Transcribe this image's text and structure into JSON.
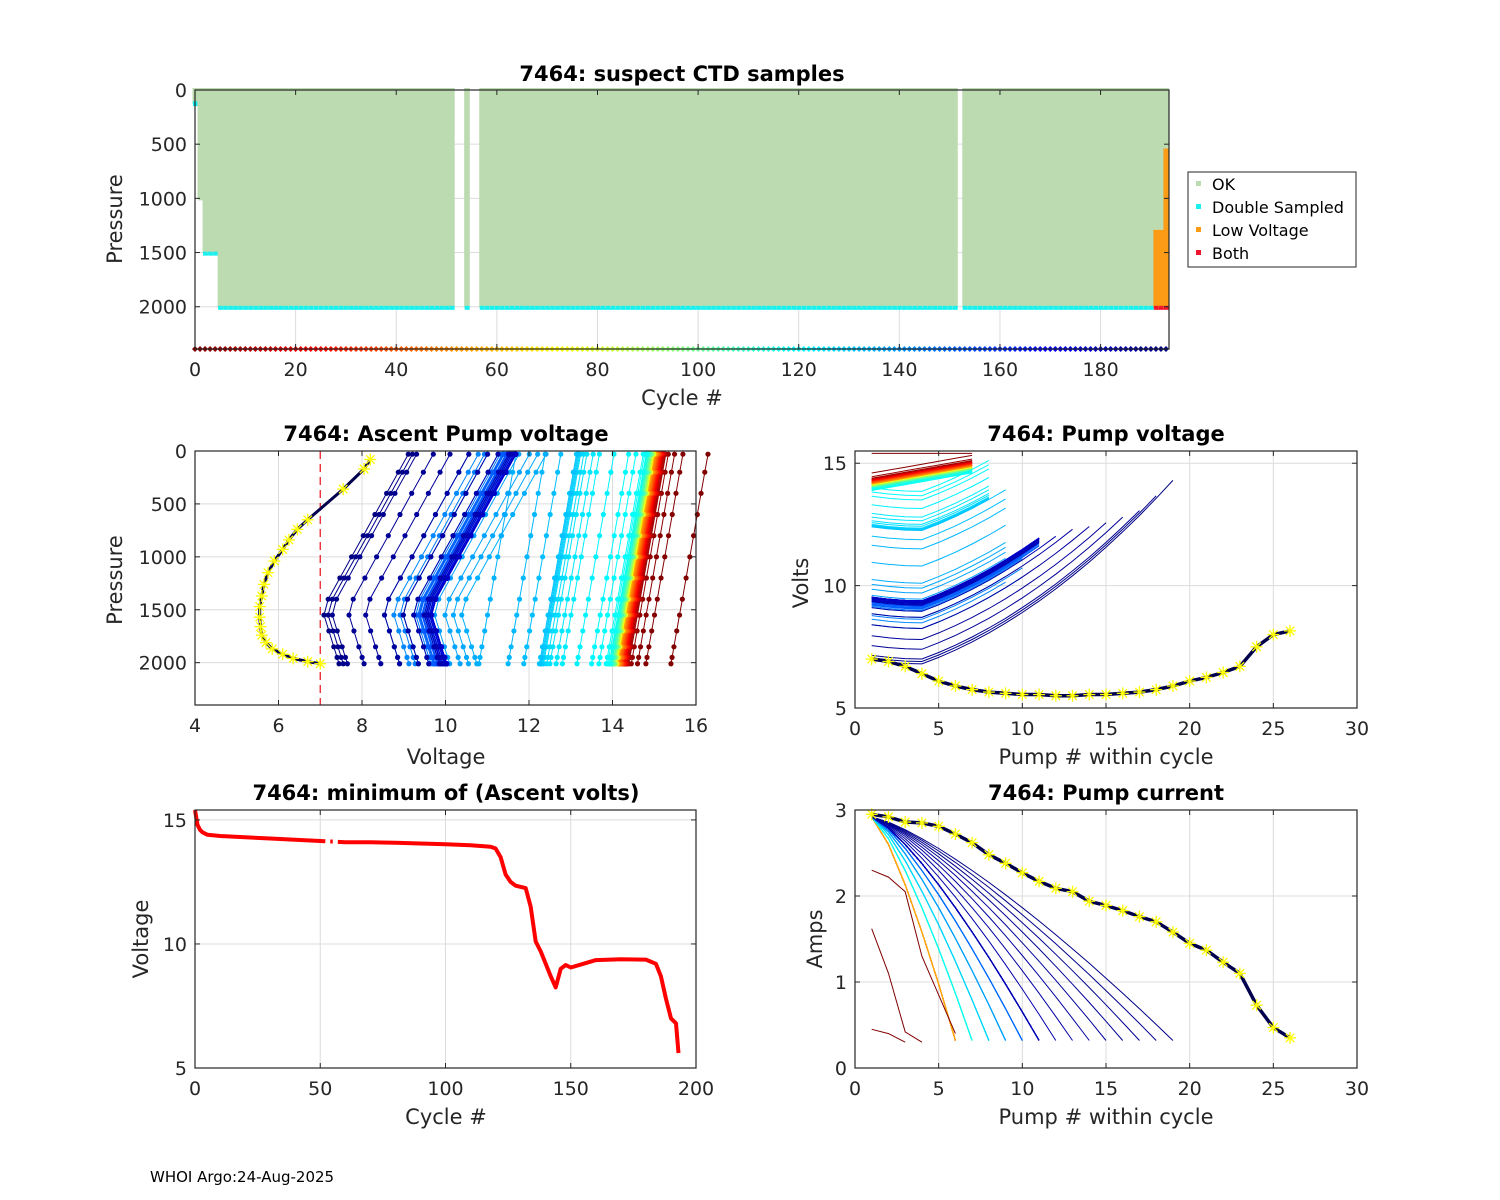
{
  "footer": "WHOI Argo:24-Aug-2025",
  "colors": {
    "ok": "#bcdbb0",
    "double_sampled": "#19f0f0",
    "low_voltage": "#fb9b16",
    "both": "#f0142d",
    "threshold_line": "#e8202a",
    "last_cycle_line": "#00004d",
    "last_cycle_marker": "#ffff00",
    "min_volt_line": "#ff0000"
  },
  "chart_data": [
    {
      "id": "suspect-ctd",
      "type": "scatter",
      "title": "7464: suspect CTD samples",
      "xlabel": "Cycle #",
      "ylabel": "Pressure",
      "xlim": [
        0,
        193.6
      ],
      "ylim": [
        2390,
        0
      ],
      "y_reversed": true,
      "xticks": [
        0,
        20,
        40,
        60,
        80,
        100,
        120,
        140,
        160,
        180
      ],
      "yticks": [
        0,
        500,
        1000,
        1500,
        2000
      ],
      "grid": true,
      "legend": {
        "placement": "outside-right",
        "entries": [
          "OK",
          "Double Sampled",
          "Low Voltage",
          "Both"
        ]
      },
      "profiles": [
        {
          "cycles": [
            0,
            0
          ],
          "max_pressure": 130,
          "bottom_flag": "Double Sampled"
        },
        {
          "cycles": [
            1,
            1
          ],
          "max_pressure": 1000,
          "bottom_flag": "OK"
        },
        {
          "cycles": [
            2,
            4
          ],
          "max_pressure": 1510,
          "bottom_flag": "Double Sampled"
        },
        {
          "cycles": [
            5,
            51
          ],
          "max_pressure": 2010,
          "bottom_flag": "Double Sampled"
        },
        {
          "cycles": [
            54,
            54
          ],
          "max_pressure": 2010,
          "bottom_flag": "Double Sampled"
        },
        {
          "cycles": [
            57,
            151
          ],
          "max_pressure": 2010,
          "bottom_flag": "Double Sampled"
        },
        {
          "cycles": [
            153,
            190
          ],
          "max_pressure": 2010,
          "bottom_flag": "Double Sampled"
        },
        {
          "cycles": [
            191,
            192
          ],
          "max_pressure": 2010,
          "bottom_flag": "Both",
          "low_voltage_from": 1290
        },
        {
          "cycles": [
            193,
            193
          ],
          "max_pressure": 2010,
          "bottom_flag": "Both",
          "low_voltage_from": 540
        }
      ],
      "missing_cycles": [
        52,
        53,
        55,
        56,
        152
      ],
      "cycle_colorbar": {
        "colormap": "jet-reversed",
        "range": [
          0,
          193
        ],
        "row_pressure": 2390
      }
    },
    {
      "id": "ascent-pump-voltage",
      "type": "line",
      "title": "7464: Ascent Pump voltage",
      "xlabel": "Voltage",
      "ylabel": "Pressure",
      "xlim": [
        4,
        16
      ],
      "ylim": [
        2400,
        0
      ],
      "y_reversed": true,
      "xticks": [
        4,
        6,
        8,
        10,
        12,
        14,
        16
      ],
      "yticks": [
        0,
        500,
        1000,
        1500,
        2000
      ],
      "grid": true,
      "threshold_voltage": 7,
      "series_color_by": "cycle (jet-reversed)",
      "last_cycle": {
        "pressure": [
          2010,
          1990,
          1960,
          1920,
          1870,
          1810,
          1740,
          1660,
          1570,
          1470,
          1370,
          1260,
          1150,
          1040,
          930,
          840,
          740,
          650,
          360,
          170,
          80
        ],
        "voltage": [
          7.0,
          6.7,
          6.35,
          6.1,
          5.85,
          5.7,
          5.6,
          5.57,
          5.55,
          5.55,
          5.6,
          5.65,
          5.75,
          5.9,
          6.1,
          6.25,
          6.45,
          6.7,
          7.55,
          8.05,
          8.2
        ]
      }
    },
    {
      "id": "pump-voltage",
      "type": "line",
      "title": "7464: Pump voltage",
      "xlabel": "Pump # within cycle",
      "ylabel": "Volts",
      "xlim": [
        0,
        30
      ],
      "ylim": [
        5,
        15.5
      ],
      "xticks": [
        0,
        5,
        10,
        15,
        20,
        25,
        30
      ],
      "yticks": [
        5,
        10,
        15
      ],
      "grid": true,
      "series_color_by": "cycle (jet-reversed)",
      "last_cycle": {
        "pump": [
          1,
          2,
          3,
          4,
          5,
          6,
          7,
          8,
          9,
          10,
          11,
          12,
          13,
          14,
          15,
          16,
          17,
          18,
          19,
          20,
          21,
          22,
          23,
          24,
          25,
          26
        ],
        "volts": [
          7.0,
          6.9,
          6.7,
          6.4,
          6.1,
          5.9,
          5.75,
          5.65,
          5.6,
          5.55,
          5.55,
          5.5,
          5.5,
          5.55,
          5.55,
          5.6,
          5.65,
          5.75,
          5.9,
          6.1,
          6.25,
          6.45,
          6.7,
          7.5,
          8.0,
          8.15
        ]
      }
    },
    {
      "id": "min-ascent-volts",
      "type": "line",
      "title": "7464: minimum of (Ascent volts)",
      "xlabel": "Cycle #",
      "ylabel": "Voltage",
      "xlim": [
        0,
        200
      ],
      "ylim": [
        5,
        15.4
      ],
      "xticks": [
        0,
        50,
        100,
        150,
        200
      ],
      "yticks": [
        5,
        10,
        15
      ],
      "grid": true,
      "x": [
        0,
        1,
        2,
        3,
        5,
        10,
        20,
        30,
        40,
        50,
        60,
        70,
        80,
        90,
        100,
        110,
        118,
        120,
        122,
        124,
        126,
        128,
        132,
        134,
        136,
        138,
        140,
        142,
        144,
        146,
        148,
        150,
        155,
        160,
        170,
        180,
        184,
        186,
        188,
        190,
        192,
        193
      ],
      "y": [
        15.4,
        14.8,
        14.6,
        14.5,
        14.4,
        14.35,
        14.3,
        14.25,
        14.2,
        14.15,
        14.1,
        14.1,
        14.08,
        14.05,
        14.02,
        13.98,
        13.92,
        13.85,
        13.5,
        12.8,
        12.5,
        12.35,
        12.25,
        11.5,
        10.1,
        9.7,
        9.2,
        8.7,
        8.25,
        9.0,
        9.15,
        9.05,
        9.2,
        9.35,
        9.38,
        9.37,
        9.2,
        8.7,
        7.8,
        7.0,
        6.8,
        5.6
      ],
      "gaps_at_cycles": [
        52,
        53,
        55,
        56
      ]
    },
    {
      "id": "pump-current",
      "type": "line",
      "title": "7464: Pump current",
      "xlabel": "Pump # within cycle",
      "ylabel": "Amps",
      "xlim": [
        0,
        30
      ],
      "ylim": [
        0,
        3
      ],
      "xticks": [
        0,
        5,
        10,
        15,
        20,
        25,
        30
      ],
      "yticks": [
        0,
        1,
        2,
        3
      ],
      "grid": true,
      "series_color_by": "cycle (jet-reversed)",
      "last_cycle": {
        "pump": [
          1,
          2,
          3,
          4,
          5,
          6,
          7,
          8,
          9,
          10,
          11,
          12,
          13,
          14,
          15,
          16,
          17,
          18,
          19,
          20,
          21,
          22,
          23,
          24,
          25,
          26
        ],
        "amps": [
          2.95,
          2.92,
          2.86,
          2.85,
          2.81,
          2.72,
          2.62,
          2.48,
          2.38,
          2.27,
          2.17,
          2.09,
          2.05,
          1.94,
          1.89,
          1.83,
          1.76,
          1.7,
          1.58,
          1.45,
          1.37,
          1.23,
          1.1,
          0.73,
          0.47,
          0.35
        ]
      }
    }
  ]
}
